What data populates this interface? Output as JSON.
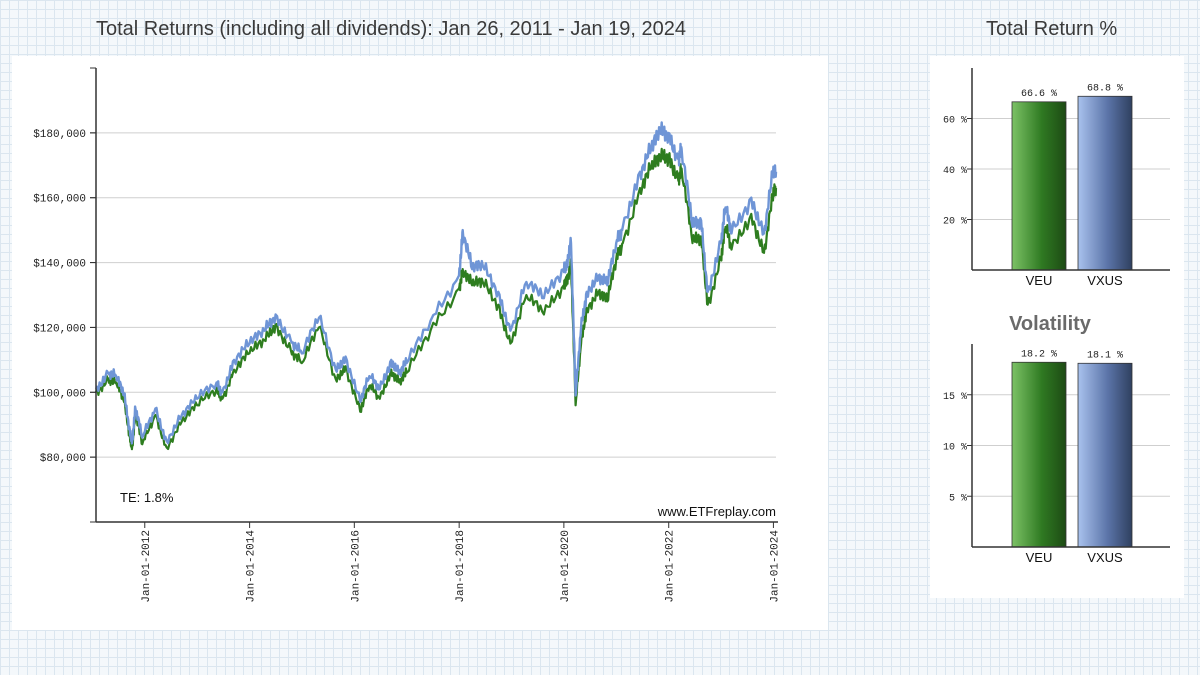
{
  "main_title": "Total Returns (including all dividends): Jan 26, 2011 - Jan 19, 2024",
  "side_title": "Total Return %",
  "volatility_title": "Volatility",
  "te_label": "TE:  1.8%",
  "watermark": "www.ETFreplay.com",
  "colors": {
    "veu": "#2e7d1f",
    "vxus": "#6f95d6",
    "veu_bar_light": "#7cc266",
    "veu_bar_dark": "#1d4a14",
    "vxus_bar_light": "#a9c2ee",
    "vxus_bar_dark": "#2f4060"
  },
  "chart_data": [
    {
      "type": "line",
      "title": "Total Returns (including all dividends): Jan 26, 2011 - Jan 19, 2024",
      "y_tick_labels": [
        "$80,000",
        "$100,000",
        "$120,000",
        "$140,000",
        "$160,000",
        "$180,000"
      ],
      "x_tick_labels": [
        "Jan-01-2012",
        "Jan-01-2014",
        "Jan-01-2016",
        "Jan-01-2018",
        "Jan-01-2020",
        "Jan-01-2022",
        "Jan-01-2024"
      ],
      "ylim": [
        60000,
        200000
      ],
      "xlim": [
        "2011-01-26",
        "2024-01-19"
      ],
      "grid": true,
      "series": [
        {
          "name": "VEU",
          "color": "#2e7d1f",
          "x": [
            "2011-01-26",
            "2011-04-20",
            "2011-06-15",
            "2011-08-10",
            "2011-09-20",
            "2011-10-05",
            "2011-10-28",
            "2011-12-15",
            "2012-03-15",
            "2012-06-01",
            "2012-09-15",
            "2012-12-31",
            "2013-05-15",
            "2013-06-25",
            "2013-09-15",
            "2013-12-31",
            "2014-04-15",
            "2014-07-01",
            "2014-10-15",
            "2014-12-31",
            "2015-04-30",
            "2015-08-25",
            "2015-11-01",
            "2016-02-11",
            "2016-04-15",
            "2016-06-27",
            "2016-09-15",
            "2016-11-10",
            "2016-12-31",
            "2017-06-15",
            "2017-12-31",
            "2018-01-26",
            "2018-04-01",
            "2018-06-15",
            "2018-10-01",
            "2018-12-24",
            "2019-04-15",
            "2019-08-15",
            "2019-12-31",
            "2020-01-20",
            "2020-02-20",
            "2020-03-23",
            "2020-04-30",
            "2020-06-08",
            "2020-08-31",
            "2020-10-30",
            "2020-12-31",
            "2021-02-15",
            "2021-06-15",
            "2021-09-01",
            "2021-11-01",
            "2021-12-31",
            "2022-03-07",
            "2022-04-01",
            "2022-06-16",
            "2022-08-15",
            "2022-09-30",
            "2022-12-31",
            "2023-02-01",
            "2023-03-15",
            "2023-07-31",
            "2023-10-27",
            "2023-12-27",
            "2024-01-19"
          ],
          "y": [
            100000,
            104000,
            103000,
            97000,
            86000,
            83000,
            93000,
            84000,
            93000,
            83000,
            91000,
            96000,
            101000,
            98000,
            107000,
            112000,
            116000,
            121000,
            113000,
            109000,
            120000,
            104000,
            108000,
            94000,
            102000,
            98000,
            107000,
            103000,
            106000,
            119000,
            132000,
            138000,
            133000,
            134000,
            127000,
            115000,
            130000,
            124000,
            133000,
            135000,
            139000,
            96000,
            115000,
            126000,
            131000,
            128000,
            141000,
            146000,
            163000,
            169000,
            172000,
            173000,
            166000,
            169000,
            146000,
            148000,
            127000,
            141000,
            151000,
            144000,
            155000,
            143000,
            160000,
            163000
          ]
        },
        {
          "name": "VXUS",
          "color": "#6f95d6",
          "x": [
            "2011-01-26",
            "2011-04-20",
            "2011-06-15",
            "2011-08-10",
            "2011-09-20",
            "2011-10-05",
            "2011-10-28",
            "2011-12-15",
            "2012-03-15",
            "2012-06-01",
            "2012-09-15",
            "2012-12-31",
            "2013-05-15",
            "2013-06-25",
            "2013-09-15",
            "2013-12-31",
            "2014-04-15",
            "2014-07-01",
            "2014-10-15",
            "2014-12-31",
            "2015-04-30",
            "2015-08-25",
            "2015-11-01",
            "2016-02-11",
            "2016-04-15",
            "2016-06-27",
            "2016-09-15",
            "2016-11-10",
            "2016-12-31",
            "2017-06-15",
            "2017-12-31",
            "2018-01-26",
            "2018-04-01",
            "2018-06-15",
            "2018-10-01",
            "2018-12-24",
            "2019-04-15",
            "2019-08-15",
            "2019-12-31",
            "2020-01-20",
            "2020-02-20",
            "2020-03-23",
            "2020-04-30",
            "2020-06-08",
            "2020-08-31",
            "2020-10-30",
            "2020-12-31",
            "2021-02-15",
            "2021-06-15",
            "2021-09-01",
            "2021-11-01",
            "2021-12-31",
            "2022-03-07",
            "2022-04-01",
            "2022-06-16",
            "2022-08-15",
            "2022-09-30",
            "2022-12-31",
            "2023-02-01",
            "2023-03-15",
            "2023-07-31",
            "2023-10-27",
            "2023-12-27",
            "2024-01-19"
          ],
          "y": [
            101000,
            106000,
            105000,
            99000,
            88000,
            85000,
            95000,
            86000,
            95000,
            85000,
            93000,
            98000,
            103000,
            100000,
            110000,
            115000,
            119000,
            124000,
            116000,
            112000,
            123000,
            107000,
            111000,
            97000,
            105000,
            101000,
            110000,
            106000,
            109000,
            122000,
            136000,
            150000,
            138000,
            139000,
            131000,
            119000,
            134000,
            129000,
            138000,
            140000,
            146000,
            99000,
            120000,
            131000,
            136000,
            133000,
            146000,
            151000,
            168000,
            175000,
            180000,
            180000,
            172000,
            175000,
            151000,
            153000,
            131000,
            146000,
            157000,
            149000,
            160000,
            149000,
            167000,
            168000
          ]
        }
      ]
    },
    {
      "type": "bar",
      "title": "Total Return %",
      "categories": [
        "VEU",
        "VXUS"
      ],
      "values": [
        66.6,
        68.8
      ],
      "value_labels": [
        "66.6 %",
        "68.8 %"
      ],
      "y_tick_labels": [
        "20 %",
        "40 %",
        "60 %"
      ],
      "ylim": [
        0,
        80
      ],
      "grid": true
    },
    {
      "type": "bar",
      "title": "Volatility",
      "categories": [
        "VEU",
        "VXUS"
      ],
      "values": [
        18.2,
        18.1
      ],
      "value_labels": [
        "18.2 %",
        "18.1 %"
      ],
      "y_tick_labels": [
        "5 %",
        "10 %",
        "15 %"
      ],
      "ylim": [
        0,
        20
      ],
      "grid": true
    }
  ]
}
